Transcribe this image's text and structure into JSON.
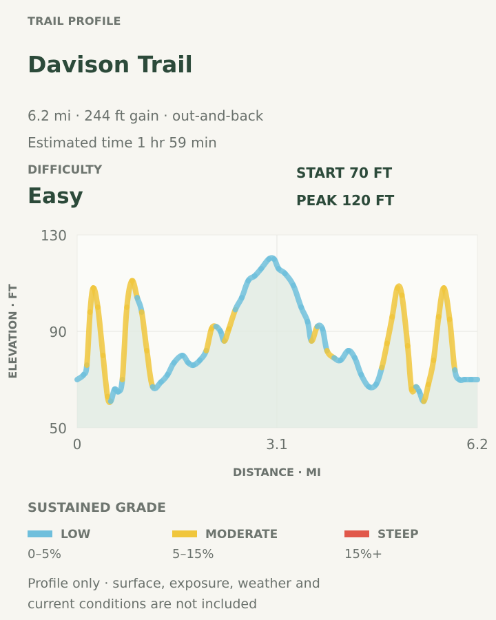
{
  "header": {
    "eyebrow": "TRAIL PROFILE",
    "title": "Davison Trail",
    "meta_line1": "6.2 mi · 244 ft gain · out-and-back",
    "meta_line2": "Estimated time 1 hr 59 min"
  },
  "difficulty": {
    "label": "DIFFICULTY",
    "value": "Easy"
  },
  "stats": {
    "start": "START 70 FT",
    "peak": "PEAK 120 FT"
  },
  "chart_data": {
    "type": "area",
    "title": "",
    "xlabel": "DISTANCE · MI",
    "ylabel": "ELEVATION · FT",
    "xlim": [
      0,
      6.2
    ],
    "ylim": [
      50,
      130
    ],
    "x_ticks": [
      "0",
      "3.1",
      "6.2"
    ],
    "y_ticks": [
      "130",
      "90",
      "50"
    ],
    "grid": true,
    "grade_colors": {
      "low": "#6fbfdc",
      "moderate": "#f0c63c",
      "steep": "#e1584a"
    },
    "points": [
      [
        0.0,
        70,
        "low"
      ],
      [
        0.1,
        72,
        "low"
      ],
      [
        0.15,
        76,
        "moderate"
      ],
      [
        0.2,
        98,
        "moderate"
      ],
      [
        0.25,
        108,
        "moderate"
      ],
      [
        0.32,
        100,
        "moderate"
      ],
      [
        0.4,
        80,
        "moderate"
      ],
      [
        0.47,
        63,
        "moderate"
      ],
      [
        0.52,
        61,
        "low"
      ],
      [
        0.58,
        66,
        "low"
      ],
      [
        0.64,
        65,
        "low"
      ],
      [
        0.7,
        70,
        "moderate"
      ],
      [
        0.77,
        100,
        "moderate"
      ],
      [
        0.85,
        111,
        "moderate"
      ],
      [
        0.93,
        104,
        "low"
      ],
      [
        1.0,
        98,
        "moderate"
      ],
      [
        1.08,
        82,
        "moderate"
      ],
      [
        1.17,
        67,
        "low"
      ],
      [
        1.3,
        69,
        "low"
      ],
      [
        1.4,
        72,
        "low"
      ],
      [
        1.5,
        77,
        "low"
      ],
      [
        1.63,
        80,
        "low"
      ],
      [
        1.72,
        77,
        "low"
      ],
      [
        1.8,
        76,
        "low"
      ],
      [
        1.9,
        78,
        "low"
      ],
      [
        2.0,
        82,
        "moderate"
      ],
      [
        2.08,
        91,
        "moderate"
      ],
      [
        2.15,
        92,
        "low"
      ],
      [
        2.22,
        90,
        "low"
      ],
      [
        2.28,
        86,
        "moderate"
      ],
      [
        2.35,
        91,
        "moderate"
      ],
      [
        2.45,
        99,
        "low"
      ],
      [
        2.55,
        104,
        "low"
      ],
      [
        2.65,
        111,
        "low"
      ],
      [
        2.75,
        113,
        "low"
      ],
      [
        2.85,
        116,
        "low"
      ],
      [
        2.97,
        120,
        "low"
      ],
      [
        3.05,
        120,
        "low"
      ],
      [
        3.12,
        116,
        "low"
      ],
      [
        3.22,
        114,
        "low"
      ],
      [
        3.35,
        109,
        "low"
      ],
      [
        3.47,
        100,
        "low"
      ],
      [
        3.57,
        94,
        "low"
      ],
      [
        3.63,
        86,
        "moderate"
      ],
      [
        3.72,
        92,
        "low"
      ],
      [
        3.8,
        91,
        "low"
      ],
      [
        3.87,
        82,
        "moderate"
      ],
      [
        3.98,
        79,
        "low"
      ],
      [
        4.08,
        78,
        "low"
      ],
      [
        4.2,
        82,
        "low"
      ],
      [
        4.3,
        79,
        "low"
      ],
      [
        4.4,
        72,
        "low"
      ],
      [
        4.52,
        67,
        "low"
      ],
      [
        4.63,
        68,
        "low"
      ],
      [
        4.72,
        75,
        "moderate"
      ],
      [
        4.8,
        85,
        "moderate"
      ],
      [
        4.88,
        96,
        "moderate"
      ],
      [
        4.96,
        108,
        "moderate"
      ],
      [
        5.03,
        105,
        "moderate"
      ],
      [
        5.12,
        84,
        "moderate"
      ],
      [
        5.18,
        66,
        "moderate"
      ],
      [
        5.25,
        67,
        "low"
      ],
      [
        5.3,
        65,
        "low"
      ],
      [
        5.37,
        61,
        "moderate"
      ],
      [
        5.44,
        68,
        "moderate"
      ],
      [
        5.52,
        78,
        "moderate"
      ],
      [
        5.6,
        96,
        "moderate"
      ],
      [
        5.68,
        108,
        "moderate"
      ],
      [
        5.77,
        95,
        "moderate"
      ],
      [
        5.85,
        74,
        "low"
      ],
      [
        5.92,
        70,
        "low"
      ],
      [
        6.0,
        70,
        "low"
      ],
      [
        6.1,
        70,
        "low"
      ],
      [
        6.2,
        70,
        "low"
      ]
    ]
  },
  "legend": {
    "title": "SUSTAINED GRADE",
    "items": [
      {
        "name": "LOW",
        "range": "0–5%",
        "color": "#6fbfdc"
      },
      {
        "name": "MODERATE",
        "range": "5–15%",
        "color": "#f0c63c"
      },
      {
        "name": "STEEP",
        "range": "15%+",
        "color": "#e1584a"
      }
    ]
  },
  "footer": {
    "note": "Profile only · surface, exposure, weather and current conditions are not included"
  }
}
